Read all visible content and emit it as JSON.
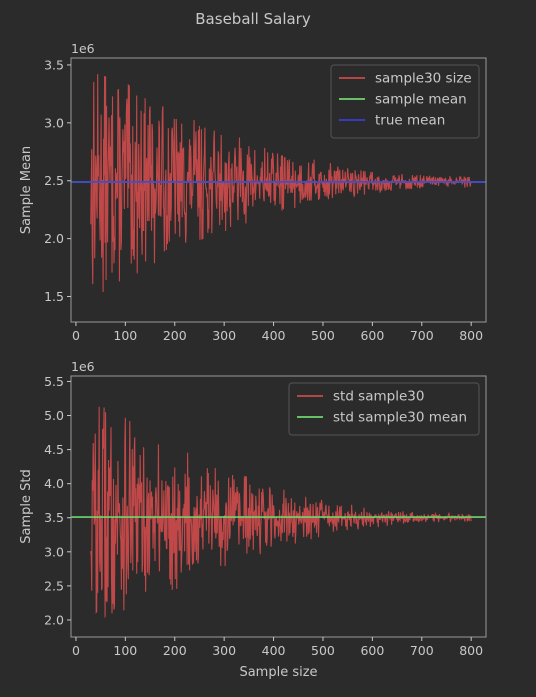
{
  "figure": {
    "title": "Baseball Salary",
    "background": "#2b2b2b",
    "text_color": "#c8c8c8"
  },
  "chart_data": [
    {
      "type": "line",
      "xlabel": "",
      "ylabel": "Sample Mean",
      "scale_label": "1e6",
      "xlim": [
        -10,
        830
      ],
      "ylim": [
        1.28,
        3.56
      ],
      "xticks": [
        0,
        100,
        200,
        300,
        400,
        500,
        600,
        700,
        800
      ],
      "xtick_labels": [
        "0",
        "100",
        "200",
        "300",
        "400",
        "500",
        "600",
        "700",
        "800"
      ],
      "yticks": [
        1.5,
        2.0,
        2.5,
        3.0,
        3.5
      ],
      "ytick_labels": [
        "1.5",
        "2.0",
        "2.5",
        "3.0",
        "3.5"
      ],
      "legend_position": "top-right",
      "series": [
        {
          "name": "sample30 size",
          "kind": "noisy",
          "color": "#c94a4a",
          "x_start": 30,
          "x_end": 800,
          "center": 2.49,
          "spread_start": 1.05,
          "spread_end": 0.05
        },
        {
          "name": "sample mean",
          "kind": "hline",
          "color": "#6fd66f",
          "y": 2.49
        },
        {
          "name": "true mean",
          "kind": "hline",
          "color": "#3d3dd6",
          "y": 2.49
        }
      ]
    },
    {
      "type": "line",
      "xlabel": "Sample size",
      "ylabel": "Sample Std",
      "scale_label": "1e6",
      "xlim": [
        -10,
        830
      ],
      "ylim": [
        1.75,
        5.58
      ],
      "xticks": [
        0,
        100,
        200,
        300,
        400,
        500,
        600,
        700,
        800
      ],
      "xtick_labels": [
        "0",
        "100",
        "200",
        "300",
        "400",
        "500",
        "600",
        "700",
        "800"
      ],
      "yticks": [
        2.0,
        2.5,
        3.0,
        3.5,
        4.0,
        4.5,
        5.0,
        5.5
      ],
      "ytick_labels": [
        "2.0",
        "2.5",
        "3.0",
        "3.5",
        "4.0",
        "4.5",
        "5.0",
        "5.5"
      ],
      "legend_position": "top-right",
      "series": [
        {
          "name": "std sample30",
          "kind": "noisy",
          "color": "#c94a4a",
          "x_start": 30,
          "x_end": 800,
          "center": 3.5,
          "spread_start": 1.8,
          "spread_end": 0.06
        },
        {
          "name": "std sample30 mean",
          "kind": "hline",
          "color": "#6fd66f",
          "y": 3.51
        }
      ]
    }
  ]
}
